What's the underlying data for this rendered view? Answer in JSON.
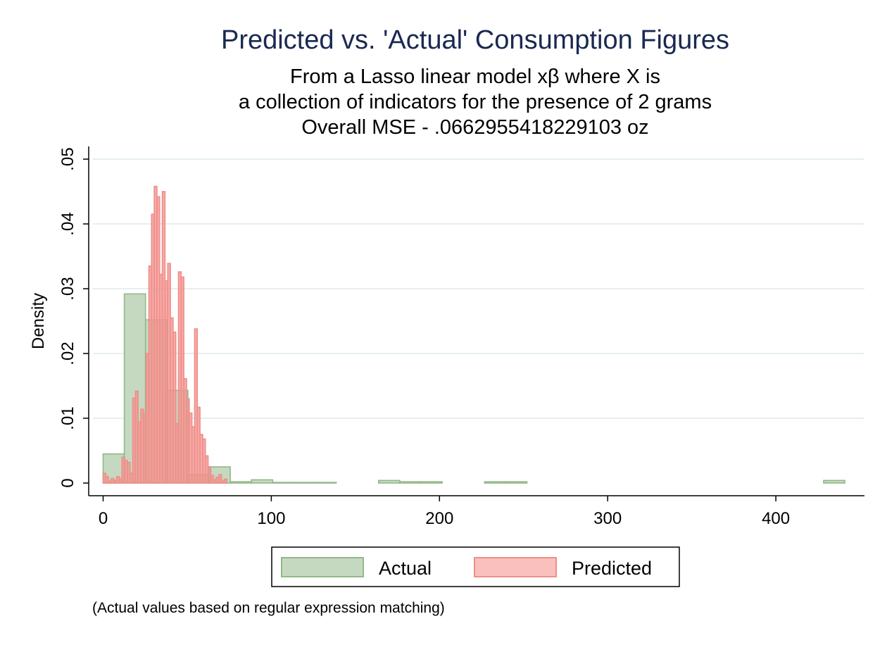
{
  "chart_data": {
    "type": "histogram",
    "title": "Predicted vs. 'Actual' Consumption Figures",
    "subtitle": [
      "From a Lasso linear model xβ where X is",
      "a collection of indicators for the presence  of 2 grams",
      "Overall MSE - .0662955418229103 oz"
    ],
    "ylabel": "Density",
    "xlabel": "",
    "note": "(Actual values based on regular expression matching)",
    "xlim": [
      -8,
      452
    ],
    "ylim": [
      -0.002,
      0.052
    ],
    "xticks": [
      0,
      100,
      200,
      300,
      400
    ],
    "yticks": [
      0,
      0.01,
      0.02,
      0.03,
      0.04,
      0.05
    ],
    "ytick_labels": [
      "0",
      ".01",
      ".02",
      ".03",
      ".04",
      ".05"
    ],
    "grid": true,
    "legend_position": "bottom",
    "series": [
      {
        "name": "Actual",
        "fill": "#c5d9c1",
        "stroke": "#93b889",
        "bin_width": 12.6,
        "bin_start": 0,
        "values": [
          0.0045,
          0.0292,
          0.0252,
          0.0143,
          0.0013,
          0.0025,
          0.0002,
          0.0005,
          0.0001,
          0.0001,
          0.0001,
          0.0,
          0.0,
          0.0004,
          0.0002,
          0.0002,
          0.0,
          0.0,
          0.0002,
          0.0002,
          0.0,
          0.0,
          0.0,
          0.0,
          0.0,
          0.0,
          0.0,
          0.0,
          0.0,
          0.0,
          0.0,
          0.0,
          0.0,
          0.0,
          0.0004
        ]
      },
      {
        "name": "Predicted",
        "fill": "#f5938f",
        "stroke": "#ee8f8a",
        "bin_width": 1.6,
        "bin_start": 0,
        "values": [
          0.0015,
          0.001,
          0.0003,
          0.0007,
          0.0004,
          0.001,
          0.0007,
          0.004,
          0.0035,
          0.0032,
          0.0015,
          0.0131,
          0.0142,
          0.0094,
          0.0114,
          0.0107,
          0.02,
          0.0335,
          0.0415,
          0.0458,
          0.0442,
          0.0322,
          0.045,
          0.0312,
          0.0339,
          0.0255,
          0.0233,
          0.0092,
          0.0326,
          0.0318,
          0.0161,
          0.013,
          0.0108,
          0.0087,
          0.0238,
          0.0117,
          0.0075,
          0.0068,
          0.0042,
          0.0025,
          0.0012,
          0.0005,
          0.0009,
          0.0013,
          0.0003,
          0.0006
        ]
      }
    ]
  }
}
